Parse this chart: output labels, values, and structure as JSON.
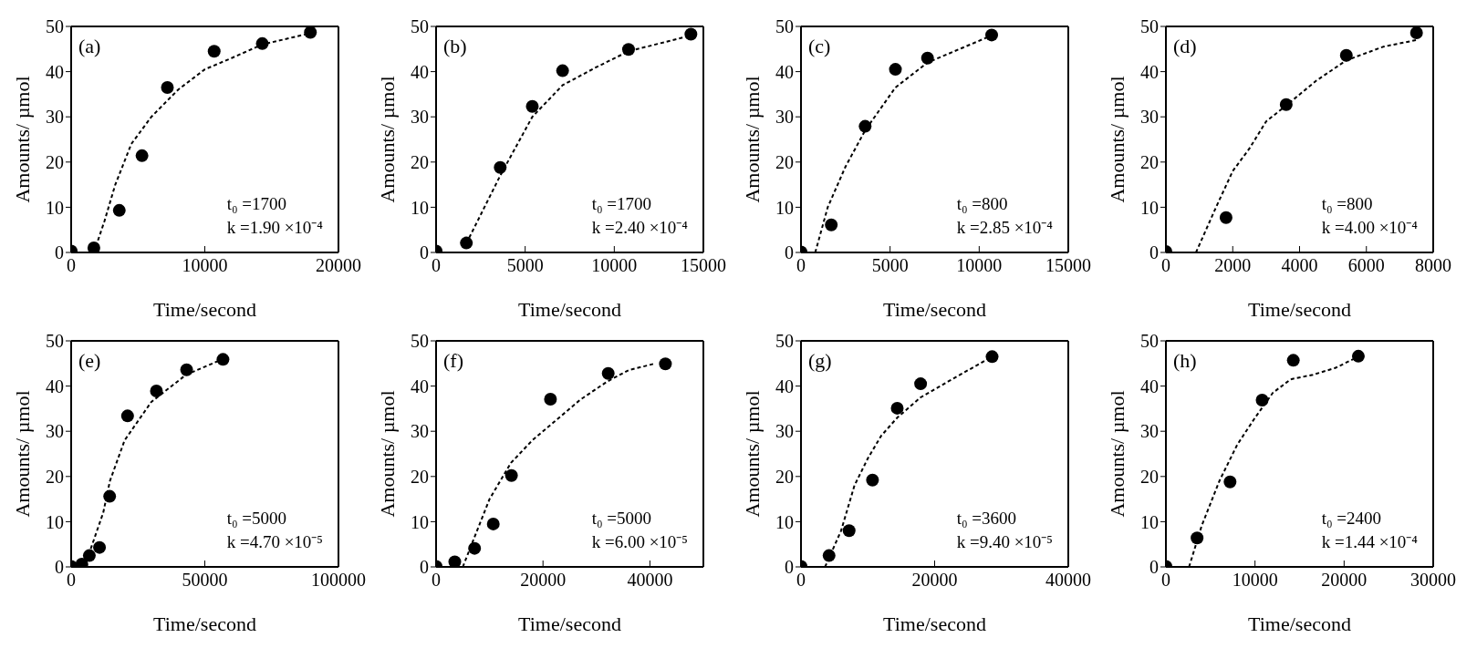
{
  "chart_data": [
    {
      "type": "scatter",
      "xlabel": "Time/second",
      "ylabel": "Amounts/  µmol",
      "xlim": [
        0,
        20000
      ],
      "xticks": [
        0,
        10000,
        20000
      ],
      "ylim": [
        0,
        50
      ],
      "yticks": [
        0,
        10,
        20,
        30,
        40,
        50
      ],
      "annotations": [
        "(a)",
        "t₀ =1700",
        "k =1.90  ×10⁻⁴"
      ],
      "series": [
        {
          "type": "scatter",
          "color": "#000000",
          "marker": "circle",
          "x": [
            0,
            1700,
            3600,
            5300,
            7200,
            10700,
            14300,
            17900
          ],
          "values": [
            0.3,
            1.0,
            9.3,
            21.4,
            36.5,
            44.5,
            46.2,
            48.7
          ]
        },
        {
          "type": "line",
          "color": "#000000",
          "marker": "none",
          "line_style": "dotted",
          "x": [
            1700,
            2500,
            3300,
            4500,
            6000,
            8000,
            10000,
            12000,
            14300,
            17900
          ],
          "values": [
            0,
            7,
            15,
            24,
            30,
            36,
            40.5,
            43,
            46,
            48.5
          ]
        }
      ]
    },
    {
      "type": "scatter",
      "xlabel": "Time/second",
      "ylabel": "Amounts/  µmol",
      "xlim": [
        0,
        15000
      ],
      "xticks": [
        0,
        5000,
        10000,
        15000
      ],
      "ylim": [
        0,
        50
      ],
      "yticks": [
        0,
        10,
        20,
        30,
        40,
        50
      ],
      "annotations": [
        "(b)",
        "t₀ =1700",
        "k =2.40  ×10⁻⁴"
      ],
      "series": [
        {
          "type": "scatter",
          "color": "#000000",
          "marker": "circle",
          "x": [
            0,
            1700,
            3600,
            5400,
            7100,
            10800,
            14300
          ],
          "values": [
            0.3,
            2.1,
            18.8,
            32.3,
            40.2,
            44.9,
            48.3
          ]
        },
        {
          "type": "line",
          "color": "#000000",
          "marker": "none",
          "line_style": "dotted",
          "x": [
            1700,
            3600,
            5400,
            7100,
            9000,
            10800,
            14300
          ],
          "values": [
            2,
            17,
            30,
            37,
            41,
            44.5,
            48
          ]
        }
      ]
    },
    {
      "type": "scatter",
      "xlabel": "Time/second",
      "ylabel": "Amounts/  µmol",
      "xlim": [
        0,
        15000
      ],
      "xticks": [
        0,
        5000,
        10000,
        15000
      ],
      "ylim": [
        0,
        50
      ],
      "yticks": [
        0,
        10,
        20,
        30,
        40,
        50
      ],
      "annotations": [
        "(c)",
        "t₀ =800",
        "k =2.85  ×10⁻⁴"
      ],
      "series": [
        {
          "type": "scatter",
          "color": "#000000",
          "marker": "circle",
          "x": [
            0,
            1700,
            3600,
            5300,
            7100,
            10700
          ],
          "values": [
            0.1,
            6.1,
            27.9,
            40.5,
            43.0,
            48.1
          ]
        },
        {
          "type": "line",
          "color": "#000000",
          "marker": "none",
          "line_style": "dotted",
          "x": [
            800,
            1500,
            2500,
            3600,
            5300,
            7100,
            10700
          ],
          "values": [
            0,
            10,
            19,
            27,
            36.5,
            42,
            48
          ]
        }
      ]
    },
    {
      "type": "scatter",
      "xlabel": "Time/second",
      "ylabel": "Amounts/  µmol",
      "xlim": [
        0,
        8000
      ],
      "xticks": [
        0,
        2000,
        4000,
        6000,
        8000
      ],
      "ylim": [
        0,
        50
      ],
      "yticks": [
        0,
        10,
        20,
        30,
        40,
        50
      ],
      "annotations": [
        "(d)",
        "t₀ =800",
        "k =4.00  ×10⁻⁴"
      ],
      "series": [
        {
          "type": "scatter",
          "color": "#000000",
          "marker": "circle",
          "x": [
            0,
            1800,
            3600,
            5400,
            7500
          ],
          "values": [
            0.2,
            7.7,
            32.7,
            43.6,
            48.6
          ]
        },
        {
          "type": "line",
          "color": "#000000",
          "marker": "none",
          "line_style": "dotted",
          "x": [
            900,
            1500,
            2000,
            2500,
            3000,
            3600,
            4500,
            5400,
            6500,
            7500
          ],
          "values": [
            0,
            10,
            18,
            23,
            29,
            32.5,
            38,
            42.5,
            45.5,
            47
          ]
        }
      ]
    },
    {
      "type": "scatter",
      "xlabel": "Time/second",
      "ylabel": "Amounts/  µmol",
      "xlim": [
        0,
        100000
      ],
      "xticks": [
        0,
        50000,
        100000
      ],
      "ylim": [
        0,
        50
      ],
      "yticks": [
        0,
        10,
        20,
        30,
        40,
        50
      ],
      "annotations": [
        "(e)",
        "t₀ =5000",
        "k =4.70  ×10⁻⁵"
      ],
      "series": [
        {
          "type": "scatter",
          "color": "#000000",
          "marker": "circle",
          "x": [
            0,
            4000,
            6800,
            10600,
            14400,
            21100,
            31900,
            43200,
            56800
          ],
          "values": [
            0.1,
            0.6,
            2.5,
            4.3,
            15.6,
            33.4,
            38.9,
            43.6,
            45.9
          ]
        },
        {
          "type": "line",
          "color": "#000000",
          "marker": "none",
          "line_style": "dotted",
          "x": [
            5000,
            12000,
            14500,
            20000,
            30000,
            43000,
            56800
          ],
          "values": [
            0,
            12,
            19,
            28,
            36.5,
            42.5,
            46
          ]
        }
      ]
    },
    {
      "type": "scatter",
      "xlabel": "Time/second",
      "ylabel": "Amounts/  µmol",
      "xlim": [
        0,
        50000
      ],
      "xticks": [
        0,
        20000,
        40000
      ],
      "ylim": [
        0,
        50
      ],
      "yticks": [
        0,
        10,
        20,
        30,
        40,
        50
      ],
      "annotations": [
        "(f)",
        "t₀ =5000",
        "k =6.00  ×10⁻⁵"
      ],
      "series": [
        {
          "type": "scatter",
          "color": "#000000",
          "marker": "circle",
          "x": [
            0,
            3500,
            7200,
            10700,
            14100,
            21400,
            32200,
            42900
          ],
          "values": [
            0.1,
            1.1,
            4.1,
            9.5,
            20.2,
            37.1,
            42.8,
            44.9
          ]
        },
        {
          "type": "line",
          "color": "#000000",
          "marker": "none",
          "line_style": "dotted",
          "x": [
            5000,
            7000,
            10000,
            14000,
            18000,
            22000,
            27000,
            32000,
            36000,
            41000
          ],
          "values": [
            0,
            6,
            15,
            23,
            28,
            32,
            37,
            41,
            43.5,
            45
          ]
        }
      ]
    },
    {
      "type": "scatter",
      "xlabel": "Time/second",
      "ylabel": "Amounts/  µmol",
      "xlim": [
        0,
        40000
      ],
      "xticks": [
        0,
        20000,
        40000
      ],
      "ylim": [
        0,
        50
      ],
      "yticks": [
        0,
        10,
        20,
        30,
        40,
        50
      ],
      "annotations": [
        "(g)",
        "t₀ =3600",
        "k =9.40  ×10⁻⁵"
      ],
      "series": [
        {
          "type": "scatter",
          "color": "#000000",
          "marker": "circle",
          "x": [
            0,
            4200,
            7200,
            10700,
            14400,
            17900,
            28600
          ],
          "values": [
            0.1,
            2.5,
            8.0,
            19.2,
            35.1,
            40.5,
            46.5
          ]
        },
        {
          "type": "line",
          "color": "#000000",
          "marker": "none",
          "line_style": "dotted",
          "x": [
            3600,
            6000,
            8000,
            10000,
            12000,
            14400,
            17900,
            22000,
            28600
          ],
          "values": [
            0,
            8,
            18,
            24,
            29,
            33,
            37.5,
            41,
            46.5
          ]
        }
      ]
    },
    {
      "type": "scatter",
      "xlabel": "Time/second",
      "ylabel": "Amounts/  µmol",
      "xlim": [
        0,
        30000
      ],
      "xticks": [
        0,
        10000,
        20000,
        30000
      ],
      "ylim": [
        0,
        50
      ],
      "yticks": [
        0,
        10,
        20,
        30,
        40,
        50
      ],
      "annotations": [
        "(h)",
        "t₀ =2400",
        "k =1.44  ×10⁻⁴"
      ],
      "series": [
        {
          "type": "scatter",
          "color": "#000000",
          "marker": "circle",
          "x": [
            0,
            3500,
            7200,
            10800,
            14300,
            21600
          ],
          "values": [
            0.1,
            6.4,
            18.8,
            36.9,
            45.7,
            46.6
          ]
        },
        {
          "type": "line",
          "color": "#000000",
          "marker": "none",
          "line_style": "dotted",
          "x": [
            2600,
            4000,
            6000,
            8000,
            10000,
            12000,
            14000,
            16500,
            19000,
            21600
          ],
          "values": [
            0,
            9,
            19,
            27,
            33,
            38.5,
            41.5,
            42.5,
            44,
            46.5
          ]
        }
      ]
    }
  ]
}
